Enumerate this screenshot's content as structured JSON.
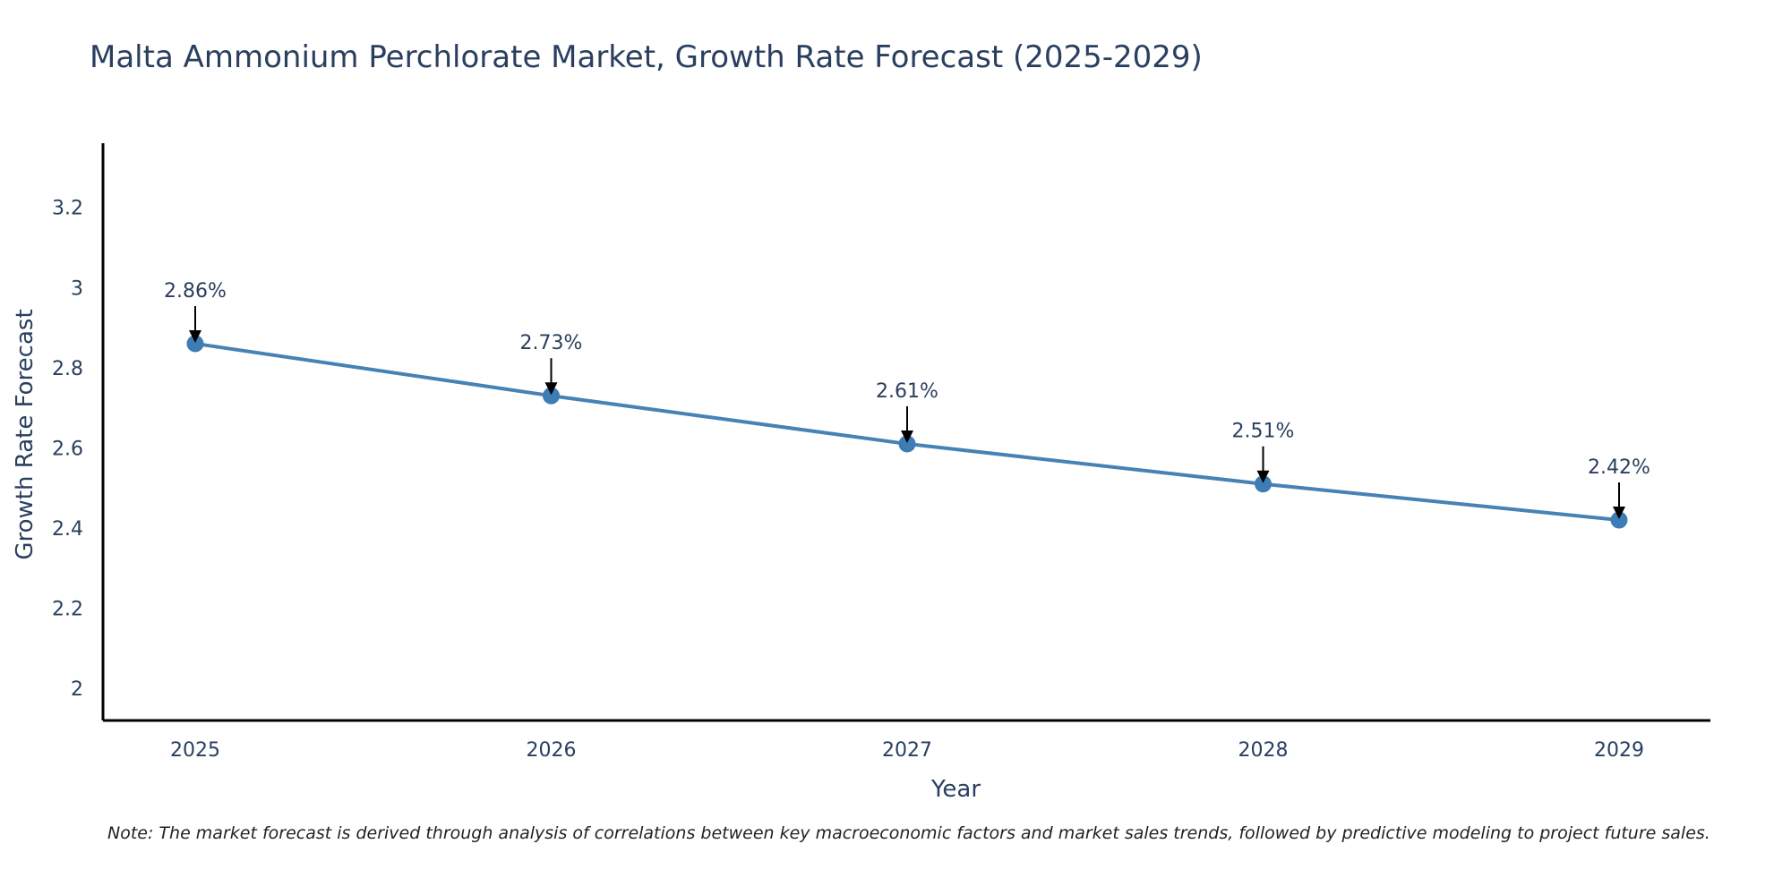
{
  "chart_data": {
    "type": "line",
    "title": "Malta Ammonium Perchlorate Market, Growth Rate Forecast (2025-2029)",
    "xlabel": "Year",
    "ylabel": "Growth Rate Forecast",
    "categories": [
      "2025",
      "2026",
      "2027",
      "2028",
      "2029"
    ],
    "values": [
      2.86,
      2.73,
      2.61,
      2.51,
      2.42
    ],
    "data_labels": [
      "2.86%",
      "2.73%",
      "2.61%",
      "2.51%",
      "2.42%"
    ],
    "ylim": [
      1.92,
      3.36
    ],
    "yticks": [
      2,
      2.2,
      2.4,
      2.6,
      2.8,
      3,
      3.2
    ],
    "ytick_labels": [
      "2",
      "2.2",
      "2.4",
      "2.6",
      "2.8",
      "3",
      "3.2"
    ],
    "grid": false,
    "legend": "none",
    "line_color": "#4682b4",
    "marker_color": "#3e7cb5",
    "arrow_color": "#000000",
    "axis_color": "#000000"
  },
  "note": "Note: The market forecast is derived through analysis of correlations between key macroeconomic factors and market sales trends, followed by predictive modeling to project future sales."
}
